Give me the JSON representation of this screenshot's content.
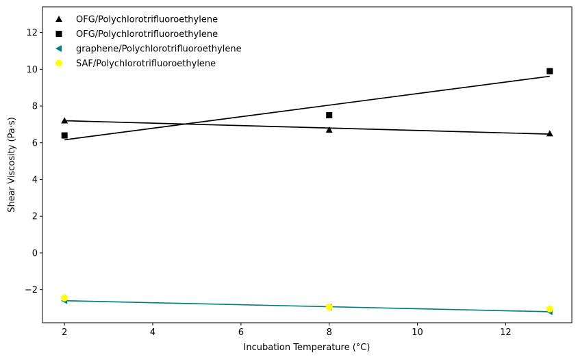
{
  "chart_data": {
    "type": "scatter",
    "title": "",
    "xlabel": "Incubation Temperature (°C)",
    "ylabel": "Shear Viscosity (Pa·s)",
    "xlim": [
      1.5,
      13.5
    ],
    "ylim": [
      -3.8,
      13.4
    ],
    "xticks": [
      2,
      4,
      6,
      8,
      10,
      12
    ],
    "yticks": [
      -2,
      0,
      2,
      4,
      6,
      8,
      10,
      12
    ],
    "grid": false,
    "legend_position": "top-left",
    "series": [
      {
        "name": "OFG/Polychlorotrifluoroethylene",
        "marker": "triangle-up",
        "color": "#000000",
        "x": [
          2,
          8,
          13
        ],
        "y": [
          7.2,
          6.7,
          6.5
        ],
        "fit": {
          "x": [
            2,
            13
          ],
          "y": [
            7.2,
            6.47
          ],
          "color": "#000000"
        }
      },
      {
        "name": "OFG/Polychlorotrifluoroethylene",
        "marker": "square",
        "color": "#000000",
        "x": [
          2,
          8,
          13
        ],
        "y": [
          6.4,
          7.5,
          9.9
        ],
        "fit": {
          "x": [
            2,
            13
          ],
          "y": [
            6.16,
            9.62
          ],
          "color": "#000000"
        }
      },
      {
        "name": "graphene/Polychlorotrifluoroethylene",
        "marker": "triangle-left",
        "color": "#008080",
        "x": [
          2,
          8,
          13
        ],
        "y": [
          -2.6,
          -2.95,
          -3.2
        ],
        "fit": {
          "x": [
            2,
            13
          ],
          "y": [
            -2.6,
            -3.2
          ],
          "color": "#008080"
        }
      },
      {
        "name": "SAF/Polychlorotrifluoroethylene",
        "marker": "circle",
        "color": "#ffff00",
        "x": [
          2,
          8,
          13
        ],
        "y": [
          -2.45,
          -2.95,
          -3.05
        ],
        "fit": null
      }
    ]
  }
}
